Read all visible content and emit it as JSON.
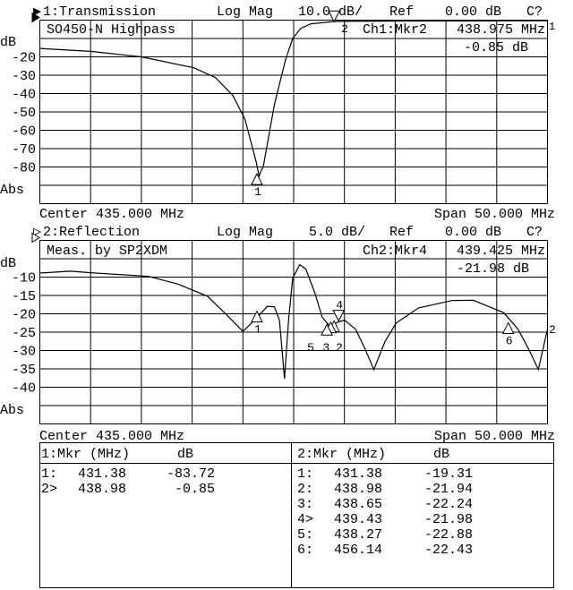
{
  "channels": [
    {
      "header": {
        "indicator": "▶",
        "name": "1:Transmission",
        "format": "Log Mag",
        "scale": "10.0 dB/",
        "ref_label": "Ref",
        "ref_value": "0.00 dB",
        "status": "C?"
      },
      "title": "SO450-N Highpass",
      "marker_readout": {
        "label": "Ch1:Mkr2",
        "freq": "438.975 MHz",
        "value": "-0.85 dB"
      },
      "y_unit": "dB",
      "y_tick_labels": [
        "-20",
        "-30",
        "-40",
        "-50",
        "-60",
        "-70",
        "-80"
      ],
      "y_mode": "Abs",
      "center": "Center 435.000 MHz",
      "span": "Span 50.000 MHz",
      "ref_line_label": "1"
    },
    {
      "header": {
        "indicator": "▷",
        "name": "2:Reflection",
        "format": "Log Mag",
        "scale": "5.0 dB/",
        "ref_label": "Ref",
        "ref_value": "0.00 dB",
        "status": "C?"
      },
      "title": "Meas. by SP2XDM",
      "marker_readout": {
        "label": "Ch2:Mkr4",
        "freq": "439.425 MHz",
        "value": "-21.98 dB"
      },
      "y_unit": "dB",
      "y_tick_labels": [
        "-10",
        "-15",
        "-20",
        "-25",
        "-30",
        "-35",
        "-40"
      ],
      "y_mode": "Abs",
      "center": "Center 435.000 MHz",
      "span": "Span 50.000 MHz",
      "ref_line_label": "2"
    }
  ],
  "marker_table": [
    {
      "header": {
        "col1": "1:Mkr (MHz)",
        "col2": "dB"
      },
      "rows": [
        {
          "id": "1:",
          "freq": "431.38",
          "db": "-83.72"
        },
        {
          "id": "2>",
          "freq": "438.98",
          "db": "-0.85"
        }
      ]
    },
    {
      "header": {
        "col1": "2:Mkr (MHz)",
        "col2": "dB"
      },
      "rows": [
        {
          "id": "1:",
          "freq": "431.38",
          "db": "-19.31"
        },
        {
          "id": "2:",
          "freq": "438.98",
          "db": "-21.94"
        },
        {
          "id": "3:",
          "freq": "438.65",
          "db": "-22.24"
        },
        {
          "id": "4>",
          "freq": "439.43",
          "db": "-21.98"
        },
        {
          "id": "5:",
          "freq": "438.27",
          "db": "-22.88"
        },
        {
          "id": "6:",
          "freq": "456.14",
          "db": "-22.43"
        }
      ]
    }
  ],
  "chart_data": [
    {
      "type": "line",
      "xlim": [
        410,
        460
      ],
      "ylim": [
        -100,
        0
      ],
      "x_unit": "MHz",
      "y_unit": "dB",
      "grid": true,
      "x": [
        410,
        415,
        420,
        425.2,
        427.3,
        429,
        430.2,
        431.3,
        431.6,
        431.8,
        432,
        433.1,
        434.2,
        434.9,
        435.7,
        436.7,
        439.1,
        445,
        460
      ],
      "y": [
        -15.4,
        -17,
        -20,
        -26,
        -31.3,
        -41,
        -54,
        -77,
        -85,
        -82,
        -80,
        -46,
        -21.6,
        -10,
        -4.5,
        -2,
        -0.7,
        -0.5,
        -0.3
      ],
      "markers": [
        {
          "n": "1",
          "freq": 431.38,
          "db": -83.72,
          "dir": "up"
        },
        {
          "n": "2",
          "freq": 438.98,
          "db": -0.85,
          "dir": "down"
        }
      ]
    },
    {
      "type": "line",
      "xlim": [
        410,
        460
      ],
      "ylim": [
        -50,
        0
      ],
      "x_unit": "MHz",
      "y_unit": "dB",
      "grid": true,
      "x": [
        410,
        413,
        415,
        420.7,
        423.6,
        426.5,
        428.3,
        430,
        431.3,
        432.4,
        433.1,
        433.6,
        434.1,
        434.5,
        434.9,
        435.6,
        436.2,
        437.1,
        437.8,
        438.6,
        439.1,
        440,
        441.1,
        442,
        442.9,
        444,
        445.1,
        447.3,
        450.6,
        452.7,
        455.7,
        457.1,
        458.2,
        459.1,
        460
      ],
      "y": [
        -8.9,
        -8.4,
        -8.8,
        -9.8,
        -11.9,
        -15.2,
        -20,
        -24.8,
        -21.3,
        -18,
        -18.1,
        -21.7,
        -37.7,
        -21.7,
        -10.3,
        -6.6,
        -7.8,
        -14.4,
        -20.9,
        -23.5,
        -22.5,
        -21.7,
        -24.2,
        -29.4,
        -35.2,
        -27.5,
        -22.5,
        -18.4,
        -16.4,
        -16.3,
        -19.7,
        -24.2,
        -29.9,
        -35.2,
        -24.2
      ],
      "markers": [
        {
          "n": "1",
          "freq": 431.38,
          "db": -19.31,
          "dir": "up"
        },
        {
          "n": "2",
          "freq": 438.98,
          "db": -21.94,
          "dir": "up"
        },
        {
          "n": "3",
          "freq": 438.65,
          "db": -22.24,
          "dir": "up"
        },
        {
          "n": "4",
          "freq": 439.43,
          "db": -21.98,
          "dir": "down"
        },
        {
          "n": "5",
          "freq": 438.27,
          "db": -22.88,
          "dir": "up"
        },
        {
          "n": "6",
          "freq": 456.14,
          "db": -22.43,
          "dir": "up"
        }
      ]
    }
  ]
}
